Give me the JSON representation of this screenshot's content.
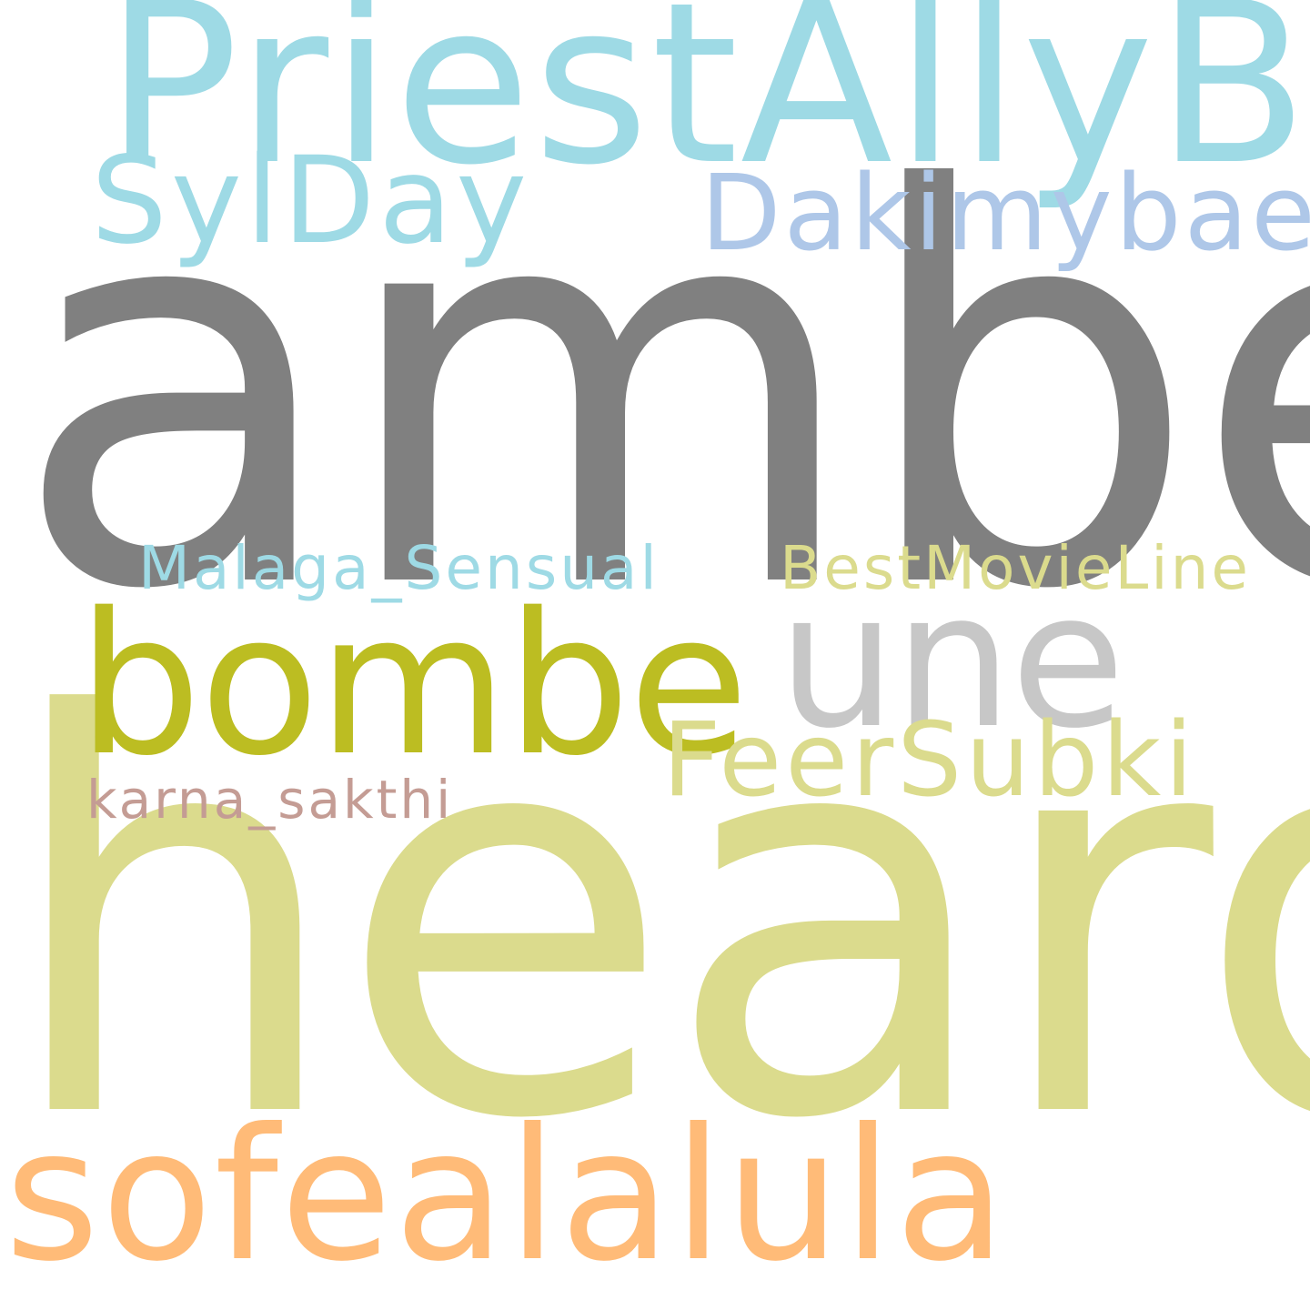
{
  "cloud": {
    "background": "#ffffff",
    "words": [
      {
        "key": "amber",
        "text": "amber",
        "color": "#808080"
      },
      {
        "key": "heard",
        "text": "heard",
        "color": "#dbdb8d"
      },
      {
        "key": "priest",
        "text": "PriestAllyB",
        "color": "#9edae5"
      },
      {
        "key": "sofea",
        "text": "sofealalula",
        "color": "#ffbb78"
      },
      {
        "key": "bombe",
        "text": "bombe",
        "color": "#bcbd22"
      },
      {
        "key": "une",
        "text": "une",
        "color": "#c7c7c7"
      },
      {
        "key": "dakimy",
        "text": "Dakimybae",
        "color": "#aec7e8"
      },
      {
        "key": "sylday",
        "text": "SylDay",
        "color": "#9edae5"
      },
      {
        "key": "feersubki",
        "text": "FeerSubki",
        "color": "#dbdb8d"
      },
      {
        "key": "malaga",
        "text": "Malaga_Sensual",
        "color": "#9edae5"
      },
      {
        "key": "bestmovie",
        "text": "BestMovieLine",
        "color": "#dbdb8d"
      },
      {
        "key": "karna",
        "text": "karna_sakthi",
        "color": "#c49c94"
      }
    ]
  }
}
